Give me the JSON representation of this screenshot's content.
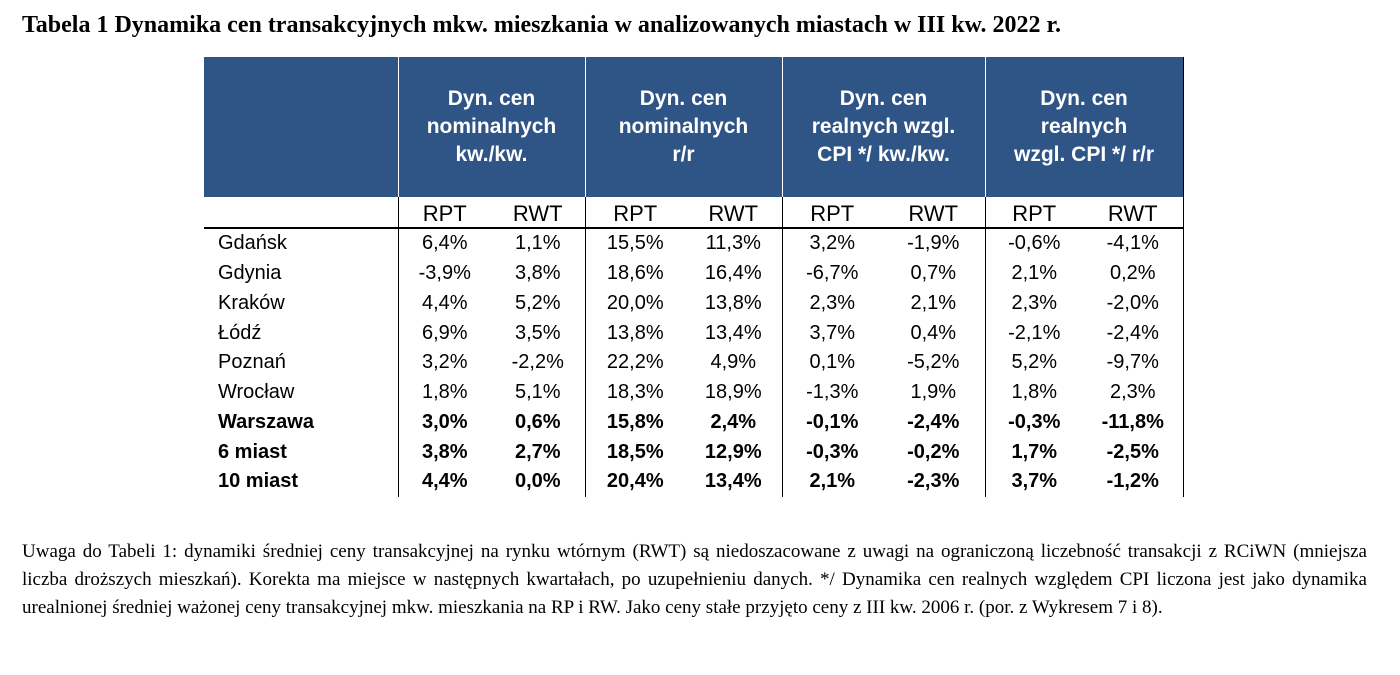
{
  "title": "Tabela 1 Dynamika cen transakcyjnych mkw. mieszkania w analizowanych miastach w III kw. 2022 r.",
  "table": {
    "groups": [
      {
        "lines": [
          "Dyn. cen",
          "nominalnych",
          "kw./kw."
        ]
      },
      {
        "lines": [
          "Dyn. cen",
          "nominalnych",
          "r/r"
        ]
      },
      {
        "lines": [
          "Dyn. cen",
          "realnych wzgl.",
          "CPI */ kw./kw."
        ]
      },
      {
        "lines": [
          "Dyn. cen",
          "realnych",
          "wzgl. CPI */ r/r"
        ]
      }
    ],
    "sub": [
      "RPT",
      "RWT",
      "RPT",
      "RWT",
      "RPT",
      "RWT",
      "RPT",
      "RWT"
    ],
    "rows": [
      {
        "city": "Gdańsk",
        "bold": false,
        "v": [
          "6,4%",
          "1,1%",
          "15,5%",
          "11,3%",
          "3,2%",
          "-1,9%",
          "-0,6%",
          "-4,1%"
        ]
      },
      {
        "city": "Gdynia",
        "bold": false,
        "v": [
          "-3,9%",
          "3,8%",
          "18,6%",
          "16,4%",
          "-6,7%",
          "0,7%",
          "2,1%",
          "0,2%"
        ]
      },
      {
        "city": "Kraków",
        "bold": false,
        "v": [
          "4,4%",
          "5,2%",
          "20,0%",
          "13,8%",
          "2,3%",
          "2,1%",
          "2,3%",
          "-2,0%"
        ]
      },
      {
        "city": "Łódź",
        "bold": false,
        "v": [
          "6,9%",
          "3,5%",
          "13,8%",
          "13,4%",
          "3,7%",
          "0,4%",
          "-2,1%",
          "-2,4%"
        ]
      },
      {
        "city": "Poznań",
        "bold": false,
        "v": [
          "3,2%",
          "-2,2%",
          "22,2%",
          "4,9%",
          "0,1%",
          "-5,2%",
          "5,2%",
          "-9,7%"
        ]
      },
      {
        "city": "Wrocław",
        "bold": false,
        "v": [
          "1,8%",
          "5,1%",
          "18,3%",
          "18,9%",
          "-1,3%",
          "1,9%",
          "1,8%",
          "2,3%"
        ]
      },
      {
        "city": "Warszawa",
        "bold": true,
        "v": [
          "3,0%",
          "0,6%",
          "15,8%",
          "2,4%",
          "-0,1%",
          "-2,4%",
          "-0,3%",
          "-11,8%"
        ]
      },
      {
        "city": "6 miast",
        "bold": true,
        "v": [
          "3,8%",
          "2,7%",
          "18,5%",
          "12,9%",
          "-0,3%",
          "-0,2%",
          "1,7%",
          "-2,5%"
        ]
      },
      {
        "city": "10 miast",
        "bold": true,
        "v": [
          "4,4%",
          "0,0%",
          "20,4%",
          "13,4%",
          "2,1%",
          "-2,3%",
          "3,7%",
          "-1,2%"
        ]
      }
    ]
  },
  "note": "Uwaga do Tabeli 1: dynamiki średniej ceny transakcyjnej na rynku wtórnym (RWT) są niedoszacowane z uwagi na ograniczoną liczebność transakcji z RCiWN (mniejsza liczba droższych mieszkań). Korekta ma miejsce w następnych kwartałach, po uzupełnieniu danych. */ Dynamika cen realnych względem CPI liczona jest jako dynamika urealnionej średniej ważonej ceny transakcyjnej mkw. mieszkania na RP i RW. Jako ceny stałe przyjęto ceny z III kw. 2006 r. (por. z Wykresem 7 i 8).",
  "colors": {
    "header_bg": "#2f5486",
    "header_text": "#ffffff"
  }
}
